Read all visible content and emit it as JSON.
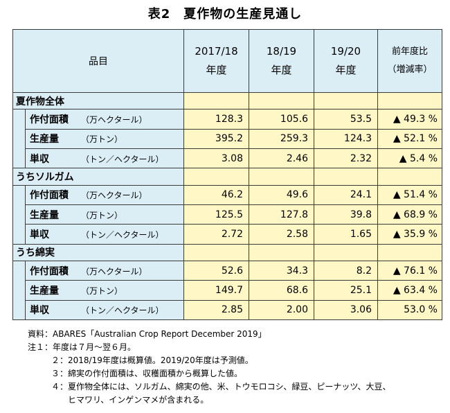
{
  "title": "表2　夏作物の生産見通し",
  "header": {
    "item": "品目",
    "year1_a": "2017/18",
    "year1_b": "年度",
    "year2_a": "18/19",
    "year2_b": "年度",
    "year3_a": "19/20",
    "year3_b": "年度",
    "ratio_a": "前年度比",
    "ratio_b": "（増減率）"
  },
  "groups": [
    {
      "name": "夏作物全体",
      "rows": [
        {
          "label": "作付面積",
          "unit": "（万ヘクタール）",
          "v1": "128.3",
          "v2": "105.6",
          "v3": "53.5",
          "ratio": "▲ 49.3 %"
        },
        {
          "label": "生産量",
          "unit": "（万トン）",
          "v1": "395.2",
          "v2": "259.3",
          "v3": "124.3",
          "ratio": "▲ 52.1 %"
        },
        {
          "label": "単収",
          "unit": "（トン／ヘクタール）",
          "v1": "3.08",
          "v2": "2.46",
          "v3": "2.32",
          "ratio": "▲ 5.4 %"
        }
      ]
    },
    {
      "name": "うちソルガム",
      "rows": [
        {
          "label": "作付面積",
          "unit": "（万ヘクタール）",
          "v1": "46.2",
          "v2": "49.6",
          "v3": "24.1",
          "ratio": "▲ 51.4 %"
        },
        {
          "label": "生産量",
          "unit": "（万トン）",
          "v1": "125.5",
          "v2": "127.8",
          "v3": "39.8",
          "ratio": "▲ 68.9 %"
        },
        {
          "label": "単収",
          "unit": "（トン／ヘクタール）",
          "v1": "2.72",
          "v2": "2.58",
          "v3": "1.65",
          "ratio": "▲ 35.9 %"
        }
      ]
    },
    {
      "name": "うち綿実",
      "rows": [
        {
          "label": "作付面積",
          "unit": "（万ヘクタール）",
          "v1": "52.6",
          "v2": "34.3",
          "v3": "8.2",
          "ratio": "▲ 76.1 %"
        },
        {
          "label": "生産量",
          "unit": "（万トン）",
          "v1": "149.7",
          "v2": "68.6",
          "v3": "25.1",
          "ratio": "▲ 63.4 %"
        },
        {
          "label": "単収",
          "unit": "（トン／ヘクタール）",
          "v1": "2.85",
          "v2": "2.00",
          "v3": "3.06",
          "ratio": "53.0 %"
        }
      ]
    }
  ],
  "notes": {
    "source": "資料：ABARES「Australian Crop Report December 2019」",
    "n1": "注１：年度は７月～翌６月。",
    "n2": "２：2018/19年度は概算値。2019/20年度は予測値。",
    "n3": "３：綿実の作付面積は、収穫面積から概算した値。",
    "n4": "４：夏作物全体には、ソルガム、綿実の他、米、トウモロコシ、緑豆、ピーナッツ、大豆、",
    "n4b": "ヒマワリ、インゲンマメが含まれる。"
  },
  "colors": {
    "header_bg": "#dbeef5",
    "value_bg": "#fff8c6",
    "border": "#3a3a3a"
  }
}
